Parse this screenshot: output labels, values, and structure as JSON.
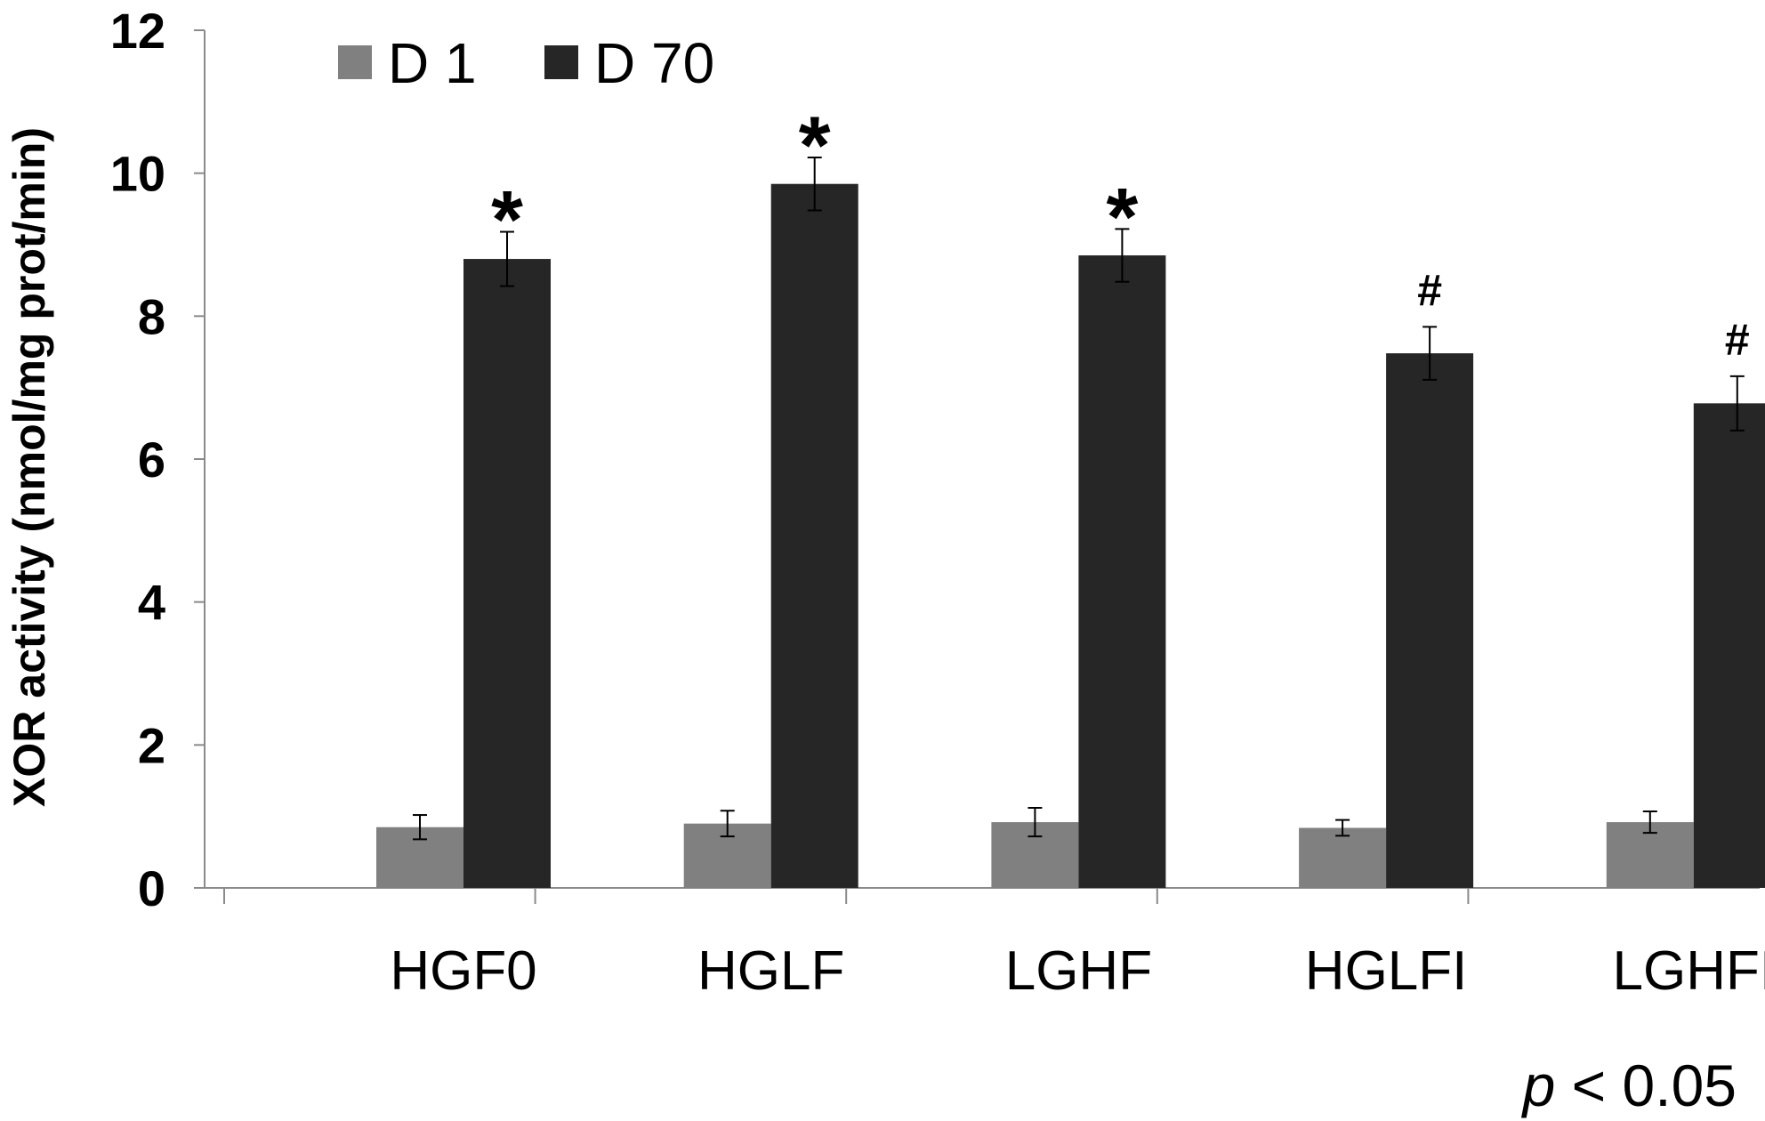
{
  "chart_data": {
    "type": "bar",
    "ylabel": "XOR activity (nmol/mg prot/min)",
    "xlabel": "",
    "ylim": [
      0,
      12
    ],
    "yticks": [
      "0",
      "2",
      "4",
      "6",
      "8",
      "10",
      "12"
    ],
    "categories": [
      "HGF0",
      "HGLF",
      "LGHF",
      "HGLFI",
      "LGHFI"
    ],
    "series": [
      {
        "name": "D 1",
        "color": "#808080",
        "values": [
          0.85,
          0.9,
          0.92,
          0.84,
          0.92
        ],
        "errors": [
          0.17,
          0.18,
          0.2,
          0.11,
          0.15
        ]
      },
      {
        "name": "D 70",
        "color": "#262626",
        "values": [
          8.8,
          9.85,
          8.85,
          7.48,
          6.78
        ],
        "errors": [
          0.38,
          0.37,
          0.37,
          0.37,
          0.38
        ]
      }
    ],
    "annotations": [
      "*",
      "*",
      "*",
      "#",
      "#"
    ],
    "legend_position": "top-left",
    "grid": false,
    "footnote": {
      "italic": "p",
      "rest": " < 0.05"
    }
  }
}
